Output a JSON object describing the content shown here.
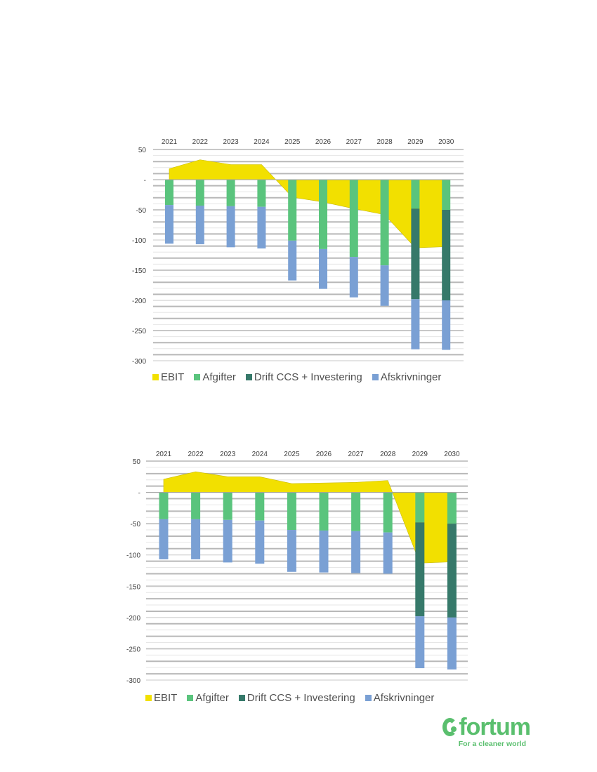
{
  "chart_data": [
    {
      "type": "bar",
      "stacked": true,
      "title": "",
      "xlabel": "",
      "ylabel": "",
      "categories": [
        "2021",
        "2022",
        "2023",
        "2024",
        "2025",
        "2026",
        "2027",
        "2028",
        "2029",
        "2030"
      ],
      "ylim": [
        -300,
        50
      ],
      "yticks": [
        "50",
        "-",
        "-50",
        "-100",
        "-150",
        "-200",
        "-250",
        "-300"
      ],
      "ytick_values": [
        50,
        0,
        -50,
        -100,
        -150,
        -200,
        -250,
        -300
      ],
      "grid": true,
      "legend_position": "bottom",
      "series": [
        {
          "name": "EBIT",
          "kind": "area",
          "color": "#F2E000",
          "values": [
            18,
            33,
            25,
            25,
            -29,
            -37,
            -48,
            -58,
            -113,
            -111
          ]
        },
        {
          "name": "Afgifter",
          "kind": "bar",
          "color": "#5AC47D",
          "values": [
            -42,
            -43,
            -44,
            -45,
            -101,
            -115,
            -128,
            -142,
            -48,
            -50
          ]
        },
        {
          "name": "Drift CCS + Investering",
          "kind": "bar",
          "color": "#36796A",
          "values": [
            0,
            0,
            0,
            0,
            0,
            0,
            0,
            0,
            -150,
            -150
          ]
        },
        {
          "name": "Afskrivninger",
          "kind": "bar",
          "color": "#7AA0D4",
          "values": [
            -64,
            -64,
            -68,
            -69,
            -66,
            -66,
            -67,
            -67,
            -83,
            -82
          ]
        }
      ]
    },
    {
      "type": "bar",
      "stacked": true,
      "title": "",
      "xlabel": "",
      "ylabel": "",
      "categories": [
        "2021",
        "2022",
        "2023",
        "2024",
        "2025",
        "2026",
        "2027",
        "2028",
        "2029",
        "2030"
      ],
      "ylim": [
        -300,
        50
      ],
      "yticks": [
        "50",
        "-",
        "-50",
        "-100",
        "-150",
        "-200",
        "-250",
        "-300"
      ],
      "ytick_values": [
        50,
        0,
        -50,
        -100,
        -150,
        -200,
        -250,
        -300
      ],
      "grid": true,
      "legend_position": "bottom",
      "series": [
        {
          "name": "EBIT",
          "kind": "area",
          "color": "#F2E000",
          "values": [
            21,
            33,
            25,
            25,
            14,
            15,
            16,
            19,
            -113,
            -111
          ]
        },
        {
          "name": "Afgifter",
          "kind": "bar",
          "color": "#5AC47D",
          "values": [
            -43,
            -43,
            -44,
            -45,
            -60,
            -61,
            -62,
            -64,
            -48,
            -50
          ]
        },
        {
          "name": "Drift CCS + Investering",
          "kind": "bar",
          "color": "#36796A",
          "values": [
            0,
            0,
            0,
            0,
            0,
            0,
            0,
            0,
            -150,
            -150
          ]
        },
        {
          "name": "Afskrivninger",
          "kind": "bar",
          "color": "#7AA0D4",
          "values": [
            -64,
            -64,
            -68,
            -69,
            -67,
            -67,
            -67,
            -66,
            -83,
            -83
          ]
        }
      ]
    }
  ],
  "legend": {
    "items": [
      {
        "label": "EBIT",
        "color": "#F2E000"
      },
      {
        "label": "Afgifter",
        "color": "#5AC47D"
      },
      {
        "label": "Drift CCS + Investering",
        "color": "#36796A"
      },
      {
        "label": "Afskrivninger",
        "color": "#7AA0D4"
      }
    ]
  },
  "logo": {
    "name": "fortum",
    "tagline": "For a cleaner world",
    "color": "#5ABF6E"
  }
}
